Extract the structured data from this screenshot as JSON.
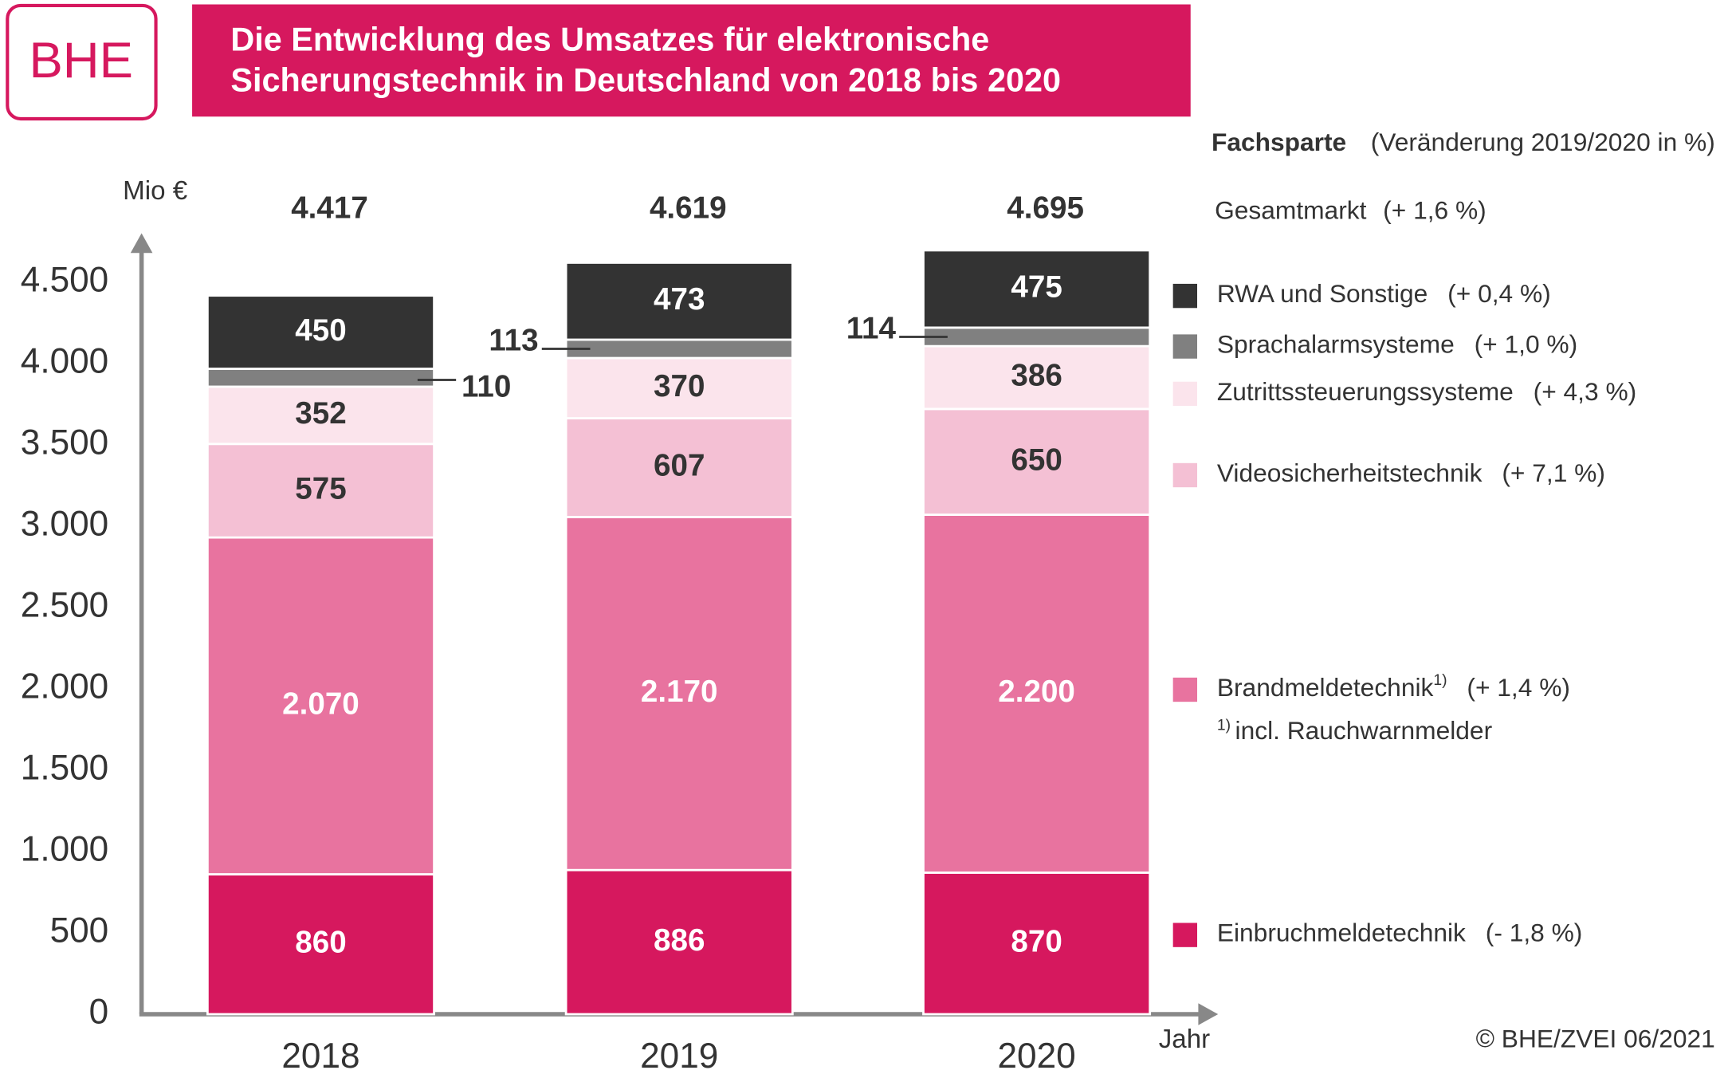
{
  "logo": "BHE",
  "chart_data": {
    "type": "stacked_bar",
    "title": [
      "Die Entwicklung des Umsatzes für elektronische",
      "Sicherungstechnik in Deutschland von 2018 bis 2020"
    ],
    "y_label": "Mio €",
    "x_label": "Jahr",
    "legend_header": {
      "name": "Fachsparte",
      "note": "(Veränderung 2019/2020 in %)"
    },
    "total": {
      "name": "Gesamtmarkt",
      "change": "(+ 1,6 %)",
      "values": [
        4417,
        4619,
        4695
      ],
      "value_labels": [
        "4.417",
        "4.619",
        "4.695"
      ]
    },
    "categories": [
      "2018",
      "2019",
      "2020"
    ],
    "series": [
      {
        "name": "Einbruchmeldetechnik",
        "change": "(- 1,8 %)",
        "color": "#d6185e",
        "label_color": "#ffffff",
        "values": [
          860,
          886,
          870
        ]
      },
      {
        "name": "Brandmeldetechnik",
        "footnote_mark": "1)",
        "change": "(+ 1,4 %)",
        "color": "#e8739f",
        "label_color": "#ffffff",
        "values": [
          2070,
          2170,
          2200
        ],
        "value_labels": [
          "2.070",
          "2.170",
          "2.200"
        ]
      },
      {
        "name": "Videosicherheitstechnik",
        "change": "(+ 7,1 %)",
        "color": "#f4c0d4",
        "label_color": "#333333",
        "values": [
          575,
          607,
          650
        ]
      },
      {
        "name": "Zutrittssteuerungssysteme",
        "change": "(+ 4,3 %)",
        "color": "#fbe4ec",
        "label_color": "#333333",
        "values": [
          352,
          370,
          386
        ]
      },
      {
        "name": "Sprachalarmsysteme",
        "change": "(+ 1,0 %)",
        "color": "#808080",
        "label_color": "#333333",
        "values": [
          110,
          113,
          114
        ]
      },
      {
        "name": "RWA und Sonstige",
        "change": "(+ 0,4 %)",
        "color": "#333333",
        "label_color": "#ffffff",
        "values": [
          450,
          473,
          475
        ]
      }
    ],
    "footnote": {
      "mark": "1)",
      "text": "incl. Rauchwarnmelder"
    },
    "ylim": [
      0,
      4780
    ],
    "yticks": [
      0,
      500,
      {
        "value": 1000,
        "label": "1.000"
      },
      {
        "value": 1500,
        "label": "1.500"
      },
      {
        "value": 2000,
        "label": "2.000"
      },
      {
        "value": 2500,
        "label": "2.500"
      },
      {
        "value": 3000,
        "label": "3.000"
      },
      {
        "value": 3500,
        "label": "3.500"
      },
      {
        "value": 4000,
        "label": "4.000"
      },
      {
        "value": 4500,
        "label": "4.500"
      }
    ],
    "source": "© BHE/ZVEI 06/2021"
  }
}
